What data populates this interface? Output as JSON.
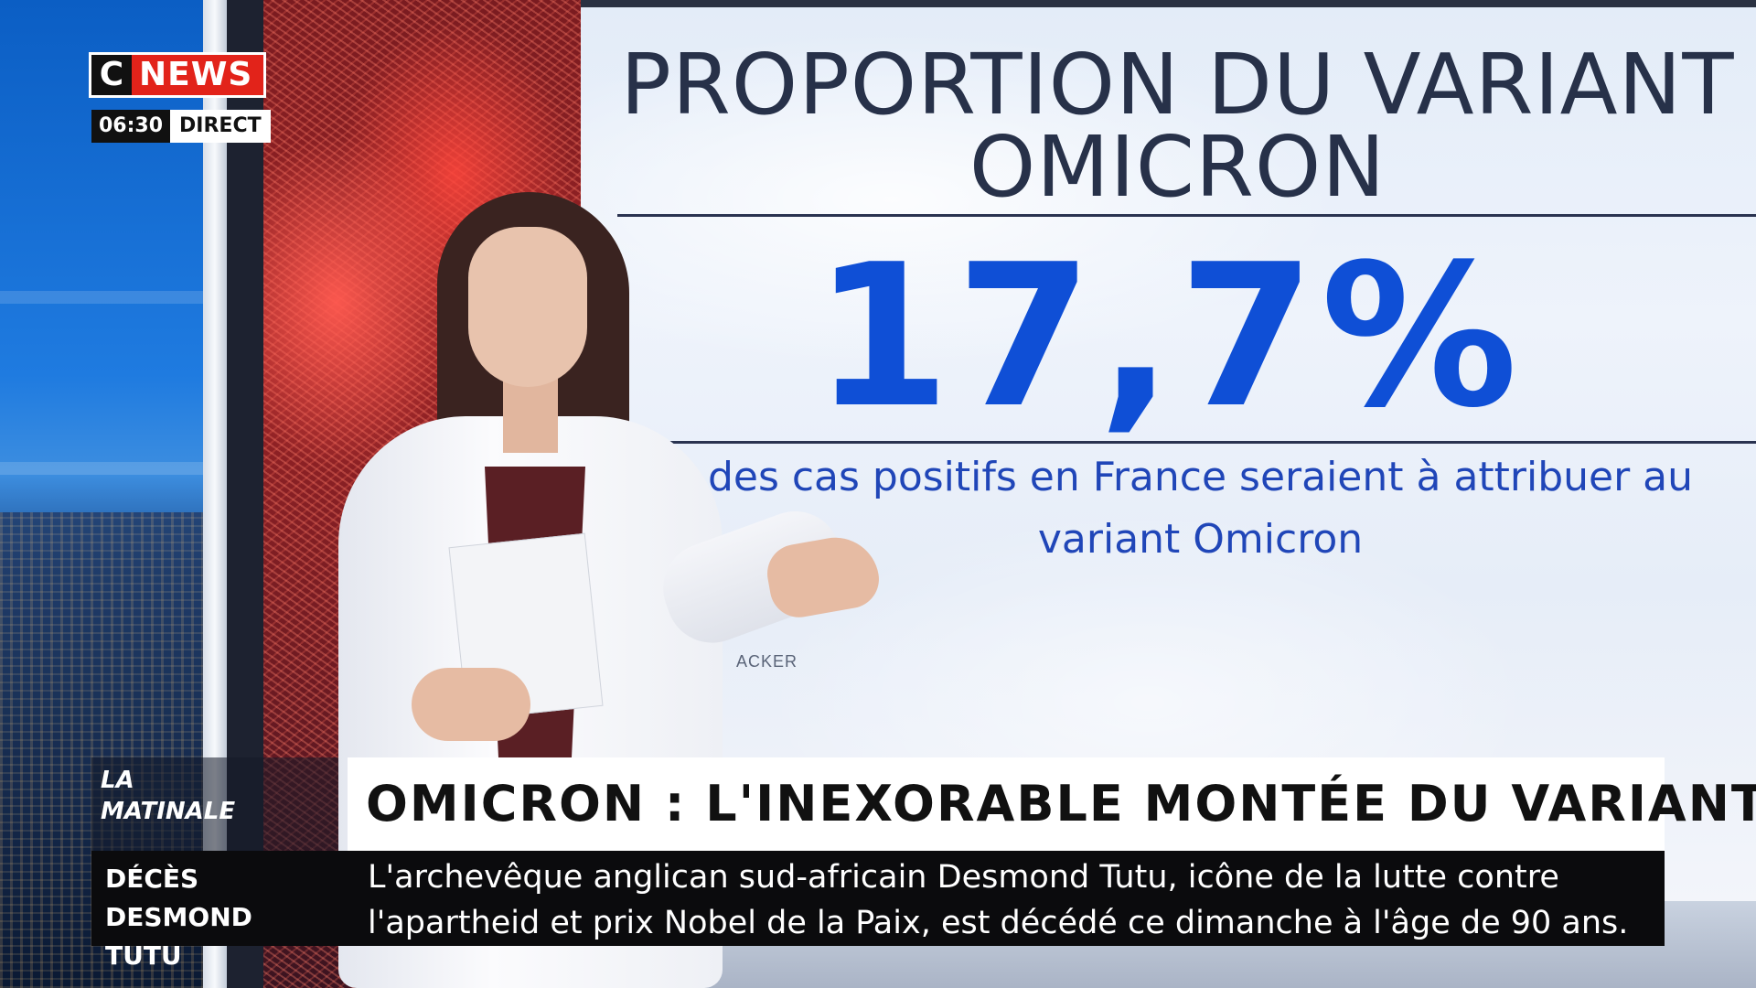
{
  "channel": {
    "logo_c": "C",
    "logo_news": "NEWS",
    "time": "06:30",
    "live_label": "DIRECT"
  },
  "infographic": {
    "title_line1": "PROPORTION DU VARIANT",
    "title_line2": "OMICRON",
    "stat": "17,7%",
    "desc_line1": "des cas positifs en France seraient à attribuer au",
    "desc_line2": "variant Omicron",
    "source_fragment": "ACKER"
  },
  "lower_third": {
    "show_line1": "LA",
    "show_line2": "MATINALE",
    "headline": "OMICRON : L'INEXORABLE MONTÉE DU VARIANT",
    "ticker_label_line1": "DÉCÈS DESMOND",
    "ticker_label_line2": "TUTU",
    "ticker_line1": "L'archevêque anglican sud-africain Desmond Tutu, icône de la lutte contre",
    "ticker_line2": "l'apartheid et prix Nobel de la Paix, est décédé ce dimanche à l'âge de 90 ans."
  },
  "colors": {
    "brand_red": "#e2231a",
    "stat_blue": "#0f4fd6",
    "title_navy": "#273149"
  }
}
